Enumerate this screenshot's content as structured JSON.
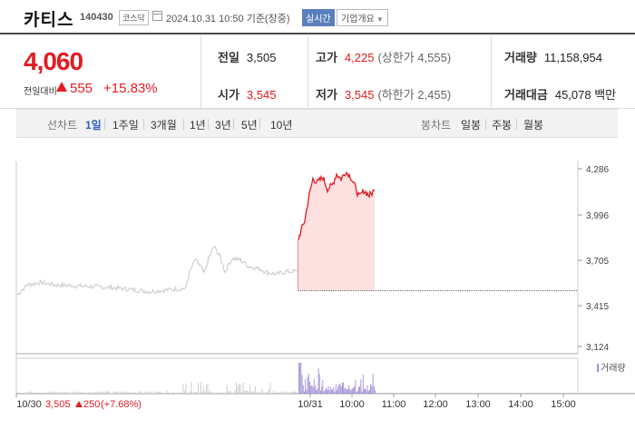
{
  "header": {
    "company_name": "카티스",
    "stock_code": "140430",
    "market": "코스닥",
    "datetime": "2024.10.31 10:50  기준(장중)",
    "realtime_label": "실시간",
    "company_info_label": "기업개요"
  },
  "price": {
    "current": "4,060",
    "change_label": "전일대비",
    "change_amount": "555",
    "change_rate": "+15.83%"
  },
  "stats": {
    "prev_close": {
      "label": "전일",
      "value": "3,505"
    },
    "open": {
      "label": "시가",
      "value": "3,545"
    },
    "high": {
      "label": "고가",
      "value": "4,225",
      "sub": "(상한가 4,555)"
    },
    "low": {
      "label": "저가",
      "value": "3,545",
      "sub": "(하한가 2,455)"
    },
    "volume": {
      "label": "거래량",
      "value": "11,158,954"
    },
    "amount": {
      "label": "거래대금",
      "value": "45,078 백만"
    }
  },
  "tabs": {
    "line_label": "선차트",
    "line_tabs": [
      "1일",
      "1주일",
      "3개월",
      "1년",
      "3년",
      "5년",
      "10년"
    ],
    "selected": "1일",
    "candle_label": "봉차트",
    "candle_tabs": [
      "일봉",
      "주봉",
      "월봉"
    ]
  },
  "chart_data": {
    "type": "line",
    "y_ticks": [
      "4,286",
      "3,996",
      "3,705",
      "3,415",
      "3,124"
    ],
    "x_ticks": [
      "10/30",
      "10/31",
      "10:00",
      "11:00",
      "12:00",
      "13:00",
      "14:00",
      "15:00"
    ],
    "prev_close": 3505,
    "ylim": [
      3124,
      4286
    ],
    "prev_day_summary": {
      "price": "3,505",
      "change": "250",
      "rate": "(+7.68%)"
    },
    "volume_legend": "거래량",
    "colors": {
      "up": "#e31b23",
      "prev": "#cfcfcf",
      "volume": "#9f8ed6",
      "fill": "#fde0e0"
    }
  }
}
